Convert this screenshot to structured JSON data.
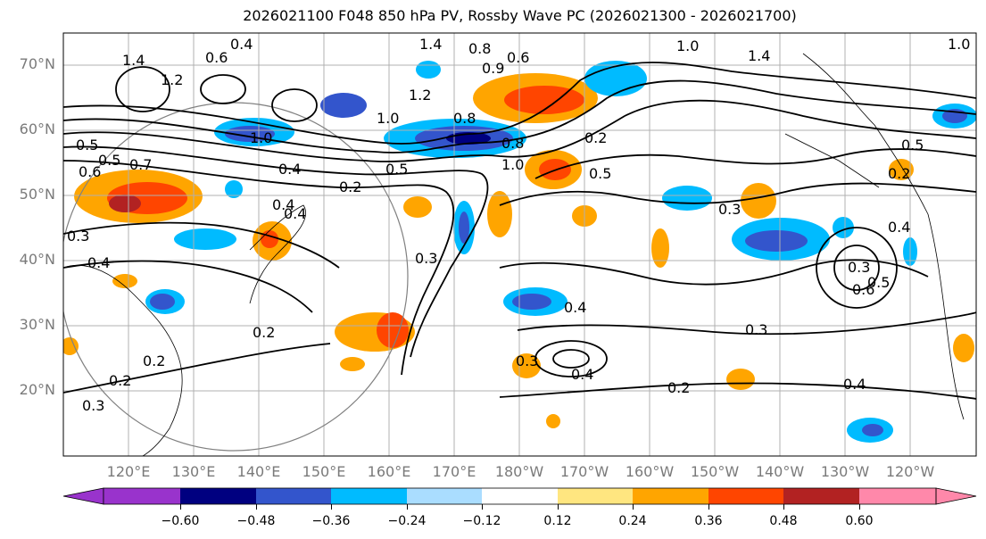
{
  "title": "2026021100 F048 850 hPa PV, Rossby Wave PC (2026021300 - 2026021700)",
  "map": {
    "projection": "PlateCarree",
    "extent_lon": [
      110,
      250
    ],
    "extent_lat": [
      10,
      75
    ],
    "lat_labels": [
      "70°N",
      "60°N",
      "50°N",
      "40°N",
      "30°N",
      "20°N"
    ],
    "lon_labels": [
      "120°E",
      "130°E",
      "140°E",
      "150°E",
      "160°E",
      "170°E",
      "180°W",
      "170°W",
      "160°W",
      "150°W",
      "140°W",
      "130°W",
      "120°W"
    ],
    "contour_labels": [
      "1.4",
      "0.4",
      "0.6",
      "1.2",
      "1.4",
      "0.8",
      "0.9",
      "0.6",
      "1.0",
      "1.4",
      "1.2",
      "1.0",
      "0.8",
      "0.5",
      "1.0",
      "0.8",
      "0.6",
      "0.7",
      "0.4",
      "0.4",
      "0.2",
      "0.5",
      "1.0",
      "0.5",
      "0.3",
      "0.3",
      "0.2",
      "0.4",
      "0.3",
      "0.4",
      "0.3",
      "0.2",
      "0.2",
      "0.3",
      "0.2",
      "0.4",
      "0.4",
      "0.3",
      "0.2",
      "0.3",
      "0.4",
      "0.6",
      "0.5",
      "0.5",
      "0.2",
      "0.5",
      "0.4",
      "1.0"
    ]
  },
  "colorbar": {
    "colors": [
      "#9933cc",
      "#000080",
      "#3355cc",
      "#00bbff",
      "#aaddff",
      "#ffffff",
      "#ffe680",
      "#ffa500",
      "#ff4500",
      "#b22222",
      "#ff88aa"
    ],
    "tick_labels": [
      "−0.60",
      "−0.48",
      "−0.36",
      "−0.24",
      "−0.12",
      "0.12",
      "0.24",
      "0.36",
      "0.48",
      "0.60"
    ],
    "extend": "both"
  }
}
